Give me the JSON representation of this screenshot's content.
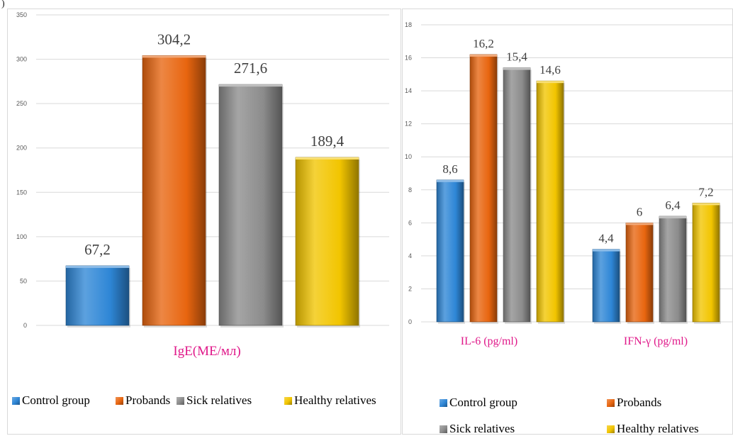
{
  "colors": {
    "control": "#2E86D6",
    "probands": "#E8650F",
    "sick": "#8C8C8C",
    "healthy": "#F2C500",
    "category_label": "#E0198A",
    "grid": "#d9d9d9",
    "tick": "#595959"
  },
  "legend": [
    {
      "label": "Control group",
      "color_key": "control"
    },
    {
      "label": "Probands",
      "color_key": "probands"
    },
    {
      "label": "Sick relatives",
      "color_key": "sick"
    },
    {
      "label": "Healthy relatives",
      "color_key": "healthy"
    }
  ],
  "chart_data": [
    {
      "type": "bar",
      "categories": [
        "IgE(МЕ/мл)"
      ],
      "series": [
        {
          "name": "Control group",
          "values": [
            67.2
          ],
          "labels": [
            "67,2"
          ]
        },
        {
          "name": "Probands",
          "values": [
            304.2
          ],
          "labels": [
            "304,2"
          ]
        },
        {
          "name": "Sick relatives",
          "values": [
            271.6
          ],
          "labels": [
            "271,6"
          ]
        },
        {
          "name": "Healthy relatives",
          "values": [
            189.4
          ],
          "labels": [
            "189,4"
          ]
        }
      ],
      "ylim": [
        0,
        350
      ],
      "yticks": [
        0,
        50,
        100,
        150,
        200,
        250,
        300,
        350
      ],
      "grid": true,
      "legend_position": "bottom"
    },
    {
      "type": "bar",
      "categories": [
        "IL-6 (pg/ml)",
        "IFN-γ (pg/ml)"
      ],
      "series": [
        {
          "name": "Control group",
          "values": [
            8.6,
            4.4
          ],
          "labels": [
            "8,6",
            "4,4"
          ]
        },
        {
          "name": "Probands",
          "values": [
            16.2,
            6.0
          ],
          "labels": [
            "16,2",
            "6"
          ]
        },
        {
          "name": "Sick relatives",
          "values": [
            15.4,
            6.4
          ],
          "labels": [
            "15,4",
            "6,4"
          ]
        },
        {
          "name": "Healthy relatives",
          "values": [
            14.6,
            7.2
          ],
          "labels": [
            "14,6",
            "7,2"
          ]
        }
      ],
      "ylim": [
        0,
        18
      ],
      "yticks": [
        0,
        2,
        4,
        6,
        8,
        10,
        12,
        14,
        16,
        18
      ],
      "grid": true,
      "legend_position": "bottom"
    }
  ]
}
